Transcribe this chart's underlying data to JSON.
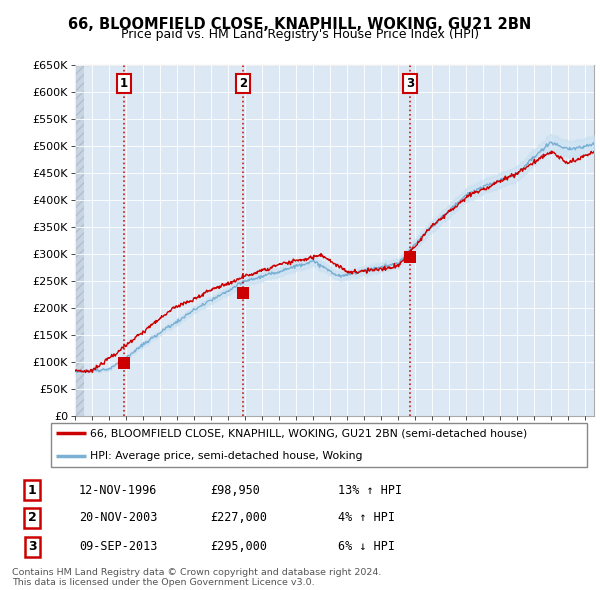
{
  "title_line1": "66, BLOOMFIELD CLOSE, KNAPHILL, WOKING, GU21 2BN",
  "title_line2": "Price paid vs. HM Land Registry's House Price Index (HPI)",
  "ylabel_ticks": [
    "£0",
    "£50K",
    "£100K",
    "£150K",
    "£200K",
    "£250K",
    "£300K",
    "£350K",
    "£400K",
    "£450K",
    "£500K",
    "£550K",
    "£600K",
    "£650K"
  ],
  "ytick_values": [
    0,
    50000,
    100000,
    150000,
    200000,
    250000,
    300000,
    350000,
    400000,
    450000,
    500000,
    550000,
    600000,
    650000
  ],
  "sale_dates": [
    1996.87,
    2003.9,
    2013.69
  ],
  "sale_prices": [
    98950,
    227000,
    295000
  ],
  "sale_labels": [
    "1",
    "2",
    "3"
  ],
  "vline_color": "#cc0000",
  "hpi_line_color": "#7ab0d4",
  "hpi_fill_color": "#c8dff0",
  "price_line_color": "#cc0000",
  "dot_color": "#cc0000",
  "plot_bg_color": "#dce9f5",
  "hatch_bg_color": "#c8d4e0",
  "grid_color": "#ffffff",
  "legend_entries": [
    "66, BLOOMFIELD CLOSE, KNAPHILL, WOKING, GU21 2BN (semi-detached house)",
    "HPI: Average price, semi-detached house, Woking"
  ],
  "table_rows": [
    [
      "1",
      "12-NOV-1996",
      "£98,950",
      "13% ↑ HPI"
    ],
    [
      "2",
      "20-NOV-2003",
      "£227,000",
      "4% ↑ HPI"
    ],
    [
      "3",
      "09-SEP-2013",
      "£295,000",
      "6% ↓ HPI"
    ]
  ],
  "footer_text": "Contains HM Land Registry data © Crown copyright and database right 2024.\nThis data is licensed under the Open Government Licence v3.0.",
  "xmin": 1994,
  "xmax": 2024.5,
  "ymin": 0,
  "ymax": 650000
}
